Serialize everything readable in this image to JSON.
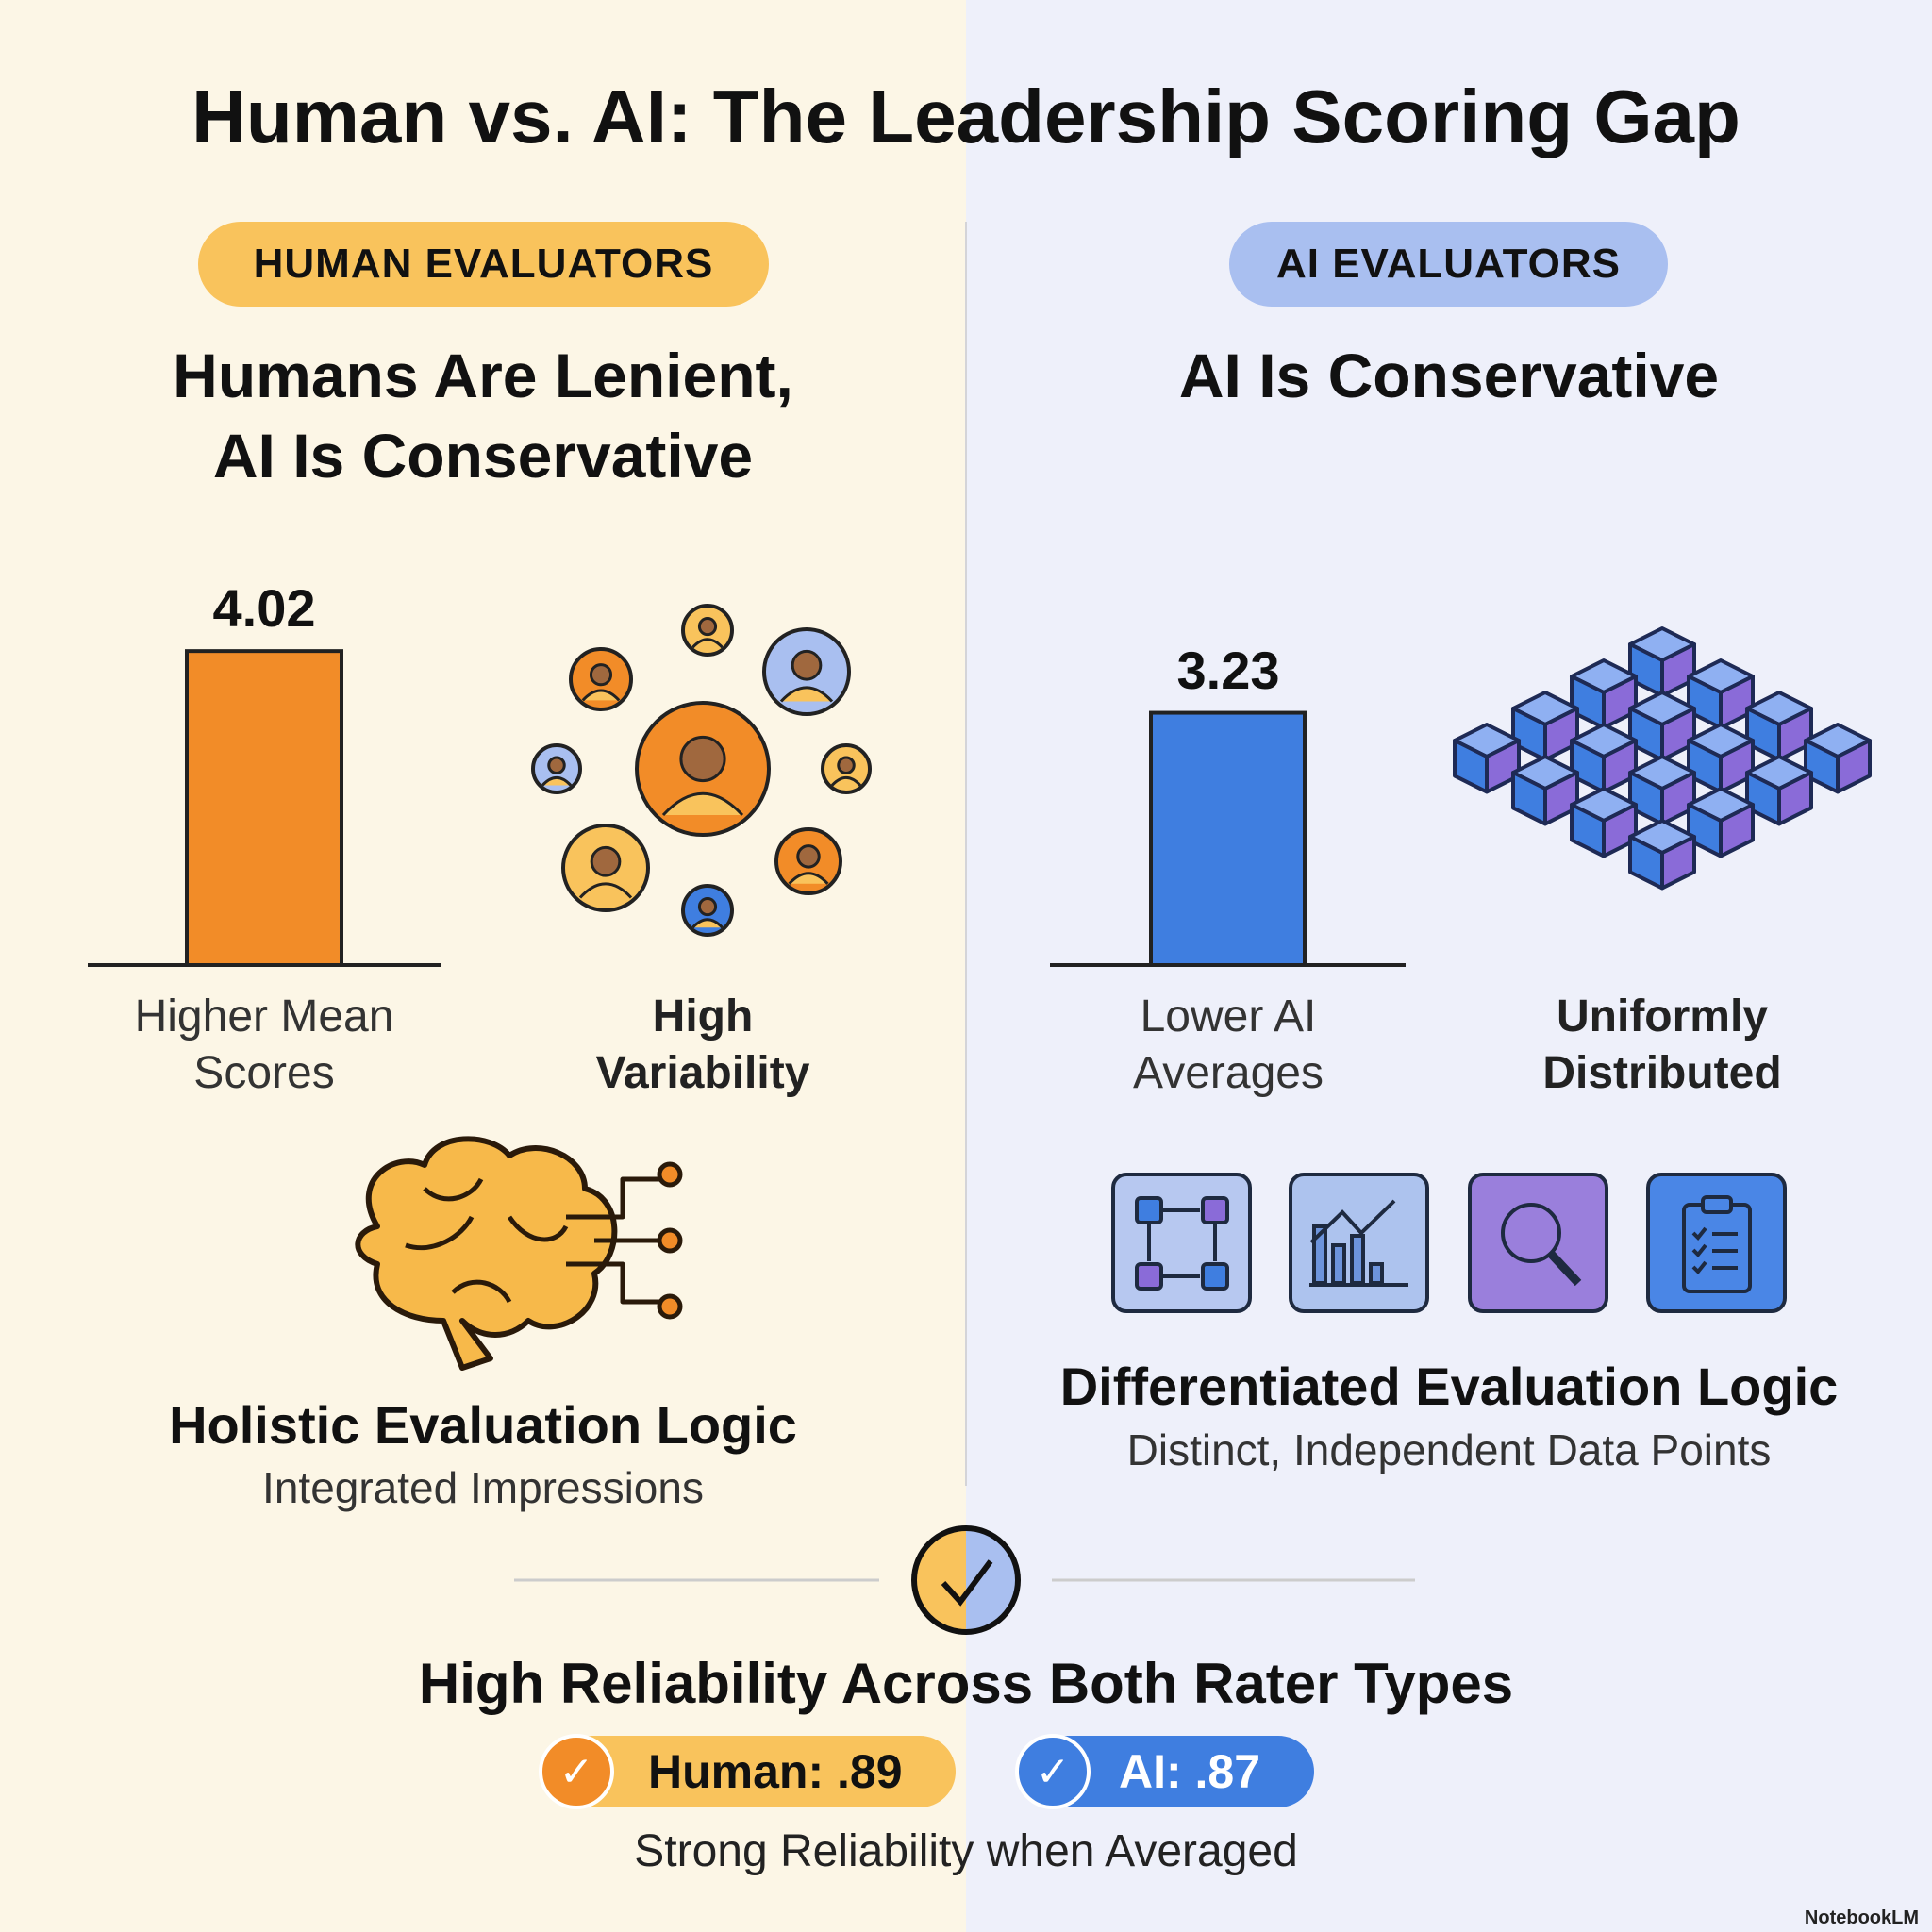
{
  "title": "Human vs. AI: The Leadership Scoring Gap",
  "human": {
    "badge": "HUMAN EVALUATORS",
    "heading_line1": "Humans Are Lenient,",
    "heading_line2": "AI Is Conservative",
    "mean_score": 4.02,
    "mean_label": "4.02",
    "bar_caption_line1": "Higher Mean",
    "bar_caption_line2": "Scores",
    "variability_line1": "High",
    "variability_line2": "Variability",
    "logic_title": "Holistic Evaluation Logic",
    "logic_subtitle": "Integrated Impressions",
    "color": "#f28c28",
    "badge_color": "#f9c35c"
  },
  "ai": {
    "badge": "AI EVALUATORS",
    "heading": "AI Is Conservative",
    "mean_score": 3.23,
    "mean_label": "3.23",
    "bar_caption_line1": "Lower AI",
    "bar_caption_line2": "Averages",
    "distribution_line1": "Uniformly",
    "distribution_line2": "Distributed",
    "logic_title": "Differentiated Evaluation Logic",
    "logic_subtitle": "Distinct, Independent Data Points",
    "icons": [
      "flow-cycle-icon",
      "bar-chart-trend-icon",
      "magnifier-icon",
      "checklist-clipboard-icon"
    ],
    "color": "#3f7ee0",
    "badge_color": "#a9bff0"
  },
  "reliability": {
    "title": "High Reliability Across Both Rater Types",
    "human_label": "Human: .89",
    "ai_label": "AI: .87",
    "human_value": 0.89,
    "ai_value": 0.87,
    "caption": "Strong Reliability when Averaged",
    "check": "✓"
  },
  "watermark": "NotebookLM"
}
